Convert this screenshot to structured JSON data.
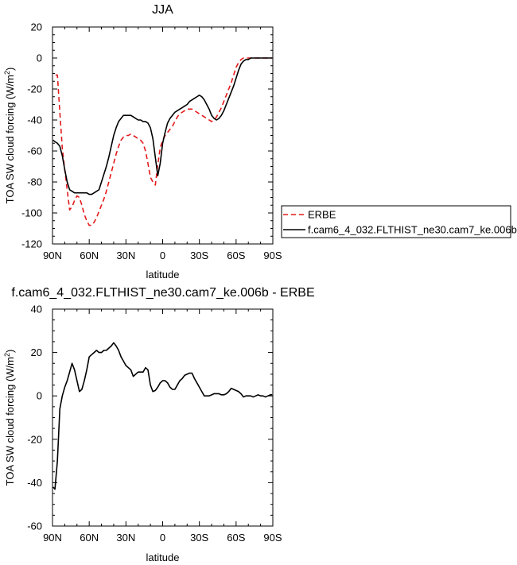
{
  "chart_data": [
    {
      "type": "line",
      "title": "JJA",
      "xlabel": "latitude",
      "ylabel": "TOA SW cloud forcing (W/m",
      "ylabel_sup": "2",
      "ylabel_close": ")",
      "xlim": [
        -90,
        90
      ],
      "ylim": [
        -120,
        20
      ],
      "x_ticks": [
        -90,
        -60,
        -30,
        0,
        30,
        60,
        90
      ],
      "x_tick_labels": [
        "90N",
        "60N",
        "30N",
        "0",
        "30S",
        "60S",
        "90S"
      ],
      "y_ticks": [
        -120,
        -100,
        -80,
        -60,
        -40,
        -20,
        0,
        20
      ],
      "y_tick_labels": [
        "-120",
        "-100",
        "-80",
        "-60",
        "-40",
        "-20",
        "0",
        "20"
      ],
      "grid": false,
      "legend_position": "right",
      "series": [
        {
          "name": "ERBE",
          "color": "#e31a1c",
          "dash": "dashed",
          "x": [
            -87.5,
            -86,
            -84,
            -82,
            -80,
            -78,
            -76,
            -74,
            -72,
            -70,
            -68,
            -66,
            -64,
            -62,
            -60,
            -58,
            -56,
            -54,
            -52,
            -50,
            -48,
            -46,
            -44,
            -42,
            -40,
            -38,
            -36,
            -34,
            -32,
            -30,
            -28,
            -26,
            -24,
            -22,
            -20,
            -18,
            -16,
            -14,
            -12,
            -10,
            -8,
            -6,
            -4,
            -2,
            0,
            2,
            4,
            6,
            8,
            10,
            12,
            14,
            16,
            18,
            20,
            22,
            24,
            26,
            28,
            30,
            32,
            34,
            36,
            38,
            40,
            42,
            44,
            46,
            48,
            50,
            52,
            54,
            56,
            58,
            60,
            62,
            64,
            66,
            68,
            70,
            72,
            74,
            76,
            78,
            80,
            82,
            84,
            86,
            88,
            89.5
          ],
          "values": [
            -11,
            -11,
            -35,
            -58,
            -72,
            -85,
            -98,
            -96,
            -92,
            -89,
            -90,
            -95,
            -101,
            -105,
            -108,
            -108,
            -106,
            -103,
            -99,
            -95,
            -91,
            -86,
            -80,
            -74,
            -68,
            -62,
            -57,
            -53,
            -51,
            -50,
            -50,
            -49,
            -50,
            -51,
            -52,
            -53,
            -55,
            -60,
            -68,
            -77,
            -80,
            -82,
            -69,
            -58,
            -53,
            -50,
            -48,
            -46,
            -44,
            -41,
            -38,
            -36,
            -35,
            -34,
            -33,
            -33,
            -33,
            -34,
            -35,
            -36,
            -37,
            -38,
            -39,
            -40,
            -41,
            -40,
            -38,
            -35,
            -32,
            -28,
            -24,
            -20,
            -16,
            -11,
            -6,
            -3,
            -1,
            0,
            0,
            0,
            0,
            0,
            0,
            0,
            0,
            0,
            0,
            0,
            0,
            0
          ]
        },
        {
          "name": "f.cam6_4_032.FLTHIST_ne30.cam7_ke.006b",
          "color": "#000000",
          "dash": "solid",
          "x": [
            -89.5,
            -88,
            -86,
            -84,
            -82,
            -80,
            -78,
            -76,
            -74,
            -72,
            -70,
            -68,
            -66,
            -64,
            -62,
            -60,
            -58,
            -56,
            -54,
            -52,
            -50,
            -48,
            -46,
            -44,
            -42,
            -40,
            -38,
            -36,
            -34,
            -32,
            -30,
            -28,
            -26,
            -24,
            -22,
            -20,
            -18,
            -16,
            -14,
            -12,
            -10,
            -8,
            -6,
            -4,
            -2,
            0,
            2,
            4,
            6,
            8,
            10,
            12,
            14,
            16,
            18,
            20,
            22,
            24,
            26,
            28,
            30,
            32,
            34,
            36,
            38,
            40,
            42,
            44,
            46,
            48,
            50,
            52,
            54,
            56,
            58,
            60,
            62,
            64,
            66,
            68,
            70,
            72,
            74,
            76,
            78,
            80,
            82,
            84,
            86,
            88,
            89.5
          ],
          "values": [
            -53,
            -54,
            -55,
            -57,
            -63,
            -72,
            -80,
            -85,
            -86,
            -87,
            -87,
            -87,
            -87,
            -87,
            -87,
            -88,
            -88,
            -87,
            -86,
            -85,
            -80,
            -75,
            -70,
            -64,
            -57,
            -50,
            -45,
            -41,
            -39,
            -37,
            -37,
            -37,
            -37,
            -38,
            -39,
            -40,
            -40,
            -41,
            -41,
            -42,
            -45,
            -52,
            -64,
            -76,
            -68,
            -55,
            -48,
            -42,
            -39,
            -37,
            -35,
            -34,
            -33,
            -32,
            -31,
            -30,
            -28,
            -27,
            -26,
            -25,
            -24,
            -25,
            -27,
            -30,
            -33,
            -37,
            -39,
            -40,
            -39,
            -37,
            -34,
            -30,
            -26,
            -22,
            -18,
            -13,
            -8,
            -4,
            -2,
            -1,
            -1,
            0,
            0,
            0,
            0,
            0,
            0,
            0,
            0,
            0,
            0
          ]
        }
      ]
    },
    {
      "type": "line",
      "title": "f.cam6_4_032.FLTHIST_ne30.cam7_ke.006b - ERBE",
      "xlabel": "latitude",
      "ylabel": "TOA SW cloud forcing (W/m",
      "ylabel_sup": "2",
      "ylabel_close": ")",
      "xlim": [
        -90,
        90
      ],
      "ylim": [
        -60,
        40
      ],
      "x_ticks": [
        -90,
        -60,
        -30,
        0,
        30,
        60,
        90
      ],
      "x_tick_labels": [
        "90N",
        "60N",
        "30N",
        "0",
        "30S",
        "60S",
        "90S"
      ],
      "y_ticks": [
        -60,
        -40,
        -20,
        0,
        20,
        40
      ],
      "y_tick_labels": [
        "-60",
        "-40",
        "-20",
        "0",
        "20",
        "40"
      ],
      "grid": false,
      "series": [
        {
          "color": "#000000",
          "dash": "solid",
          "x": [
            -89.5,
            -88,
            -86,
            -84,
            -82,
            -80,
            -78,
            -76,
            -74,
            -72,
            -70,
            -68,
            -66,
            -64,
            -62,
            -60,
            -58,
            -56,
            -54,
            -52,
            -50,
            -48,
            -46,
            -44,
            -42,
            -40,
            -38,
            -36,
            -34,
            -32,
            -30,
            -28,
            -26,
            -24,
            -22,
            -20,
            -18,
            -16,
            -14,
            -12,
            -10,
            -8,
            -6,
            -4,
            -2,
            0,
            2,
            4,
            6,
            8,
            10,
            12,
            14,
            16,
            18,
            20,
            22,
            24,
            26,
            28,
            30,
            32,
            34,
            36,
            38,
            40,
            42,
            44,
            46,
            48,
            50,
            52,
            54,
            56,
            58,
            60,
            62,
            64,
            66,
            68,
            70,
            72,
            74,
            76,
            78,
            80,
            82,
            84,
            86,
            88,
            89.5
          ],
          "values": [
            -42,
            -43,
            -30,
            -6,
            0,
            4,
            7,
            11,
            15,
            12,
            7,
            2,
            3,
            7,
            12,
            18,
            19,
            20,
            21,
            20,
            20,
            21,
            21,
            22,
            23,
            24.5,
            23,
            21,
            18,
            16,
            14,
            13,
            12,
            9,
            10,
            11,
            11,
            11,
            13,
            12,
            5,
            2,
            2.5,
            4,
            6,
            7,
            7,
            6,
            4,
            3,
            3,
            5,
            7,
            8,
            9.5,
            10,
            10.5,
            10.5,
            8,
            6,
            4,
            2,
            0,
            0,
            0,
            0.5,
            1,
            1,
            1,
            0.5,
            0.5,
            1,
            2,
            3.5,
            3,
            2.5,
            2,
            1,
            -0.5,
            0,
            0,
            0,
            -0.5,
            0,
            0.5,
            0,
            0,
            -0.5,
            0,
            0.5,
            0.5
          ]
        }
      ]
    }
  ]
}
